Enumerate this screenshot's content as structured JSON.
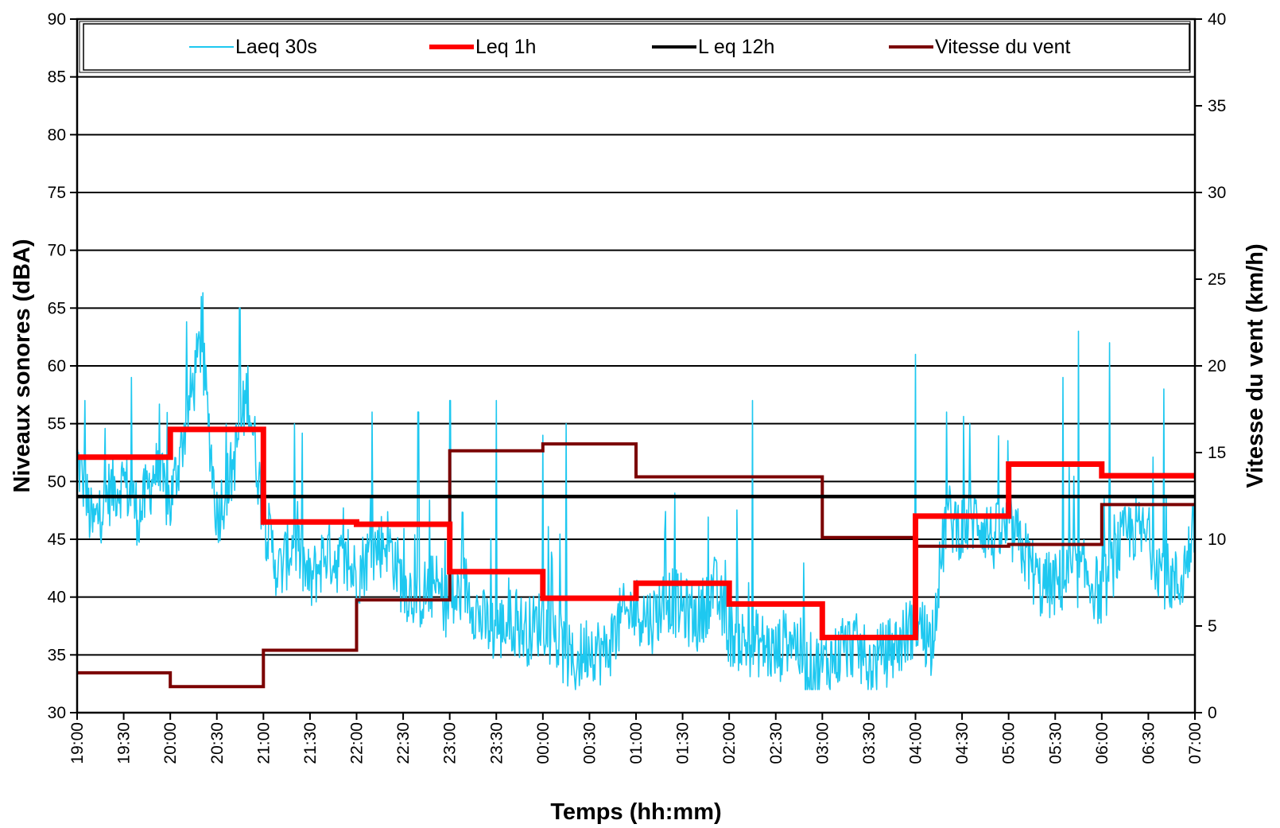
{
  "chart_data": {
    "type": "line",
    "xlabel": "Temps (hh:mm)",
    "ylabel": "Niveaux sonores (dBA)",
    "y2label": "Vitesse du vent (km/h)",
    "ylim": [
      30,
      90
    ],
    "y2lim": [
      0,
      40
    ],
    "yticks": [
      30,
      35,
      40,
      45,
      50,
      55,
      60,
      65,
      70,
      75,
      80,
      85,
      90
    ],
    "y2ticks": [
      0,
      5,
      10,
      15,
      20,
      25,
      30,
      35,
      40
    ],
    "xticks": [
      "19:00",
      "19:30",
      "20:00",
      "20:30",
      "21:00",
      "21:30",
      "22:00",
      "22:30",
      "23:00",
      "23:30",
      "00:00",
      "00:30",
      "01:00",
      "01:30",
      "02:00",
      "02:30",
      "03:00",
      "03:30",
      "04:00",
      "04:30",
      "05:00",
      "05:30",
      "06:00",
      "06:30",
      "07:00"
    ],
    "grid": true,
    "legend_position": "top",
    "series": [
      {
        "name": "Laeq 30s",
        "axis": "left",
        "color": "#1EC8F0",
        "style": "thin-line",
        "x": [
          "19:00",
          "19:10",
          "19:20",
          "19:30",
          "19:40",
          "19:50",
          "20:00",
          "20:10",
          "20:20",
          "20:30",
          "20:40",
          "20:50",
          "21:00",
          "21:10",
          "21:20",
          "21:30",
          "21:40",
          "21:50",
          "22:00",
          "22:10",
          "22:20",
          "22:30",
          "22:40",
          "22:50",
          "23:00",
          "23:10",
          "23:20",
          "23:30",
          "23:40",
          "23:50",
          "00:00",
          "00:10",
          "00:20",
          "00:30",
          "00:40",
          "00:50",
          "01:00",
          "01:10",
          "01:20",
          "01:30",
          "01:40",
          "01:50",
          "02:00",
          "02:10",
          "02:20",
          "02:30",
          "02:40",
          "02:50",
          "03:00",
          "03:10",
          "03:20",
          "03:30",
          "03:40",
          "03:50",
          "04:00",
          "04:10",
          "04:20",
          "04:30",
          "04:40",
          "04:50",
          "05:00",
          "05:10",
          "05:20",
          "05:30",
          "05:40",
          "05:50",
          "06:00",
          "06:10",
          "06:20",
          "06:30",
          "06:40",
          "06:50",
          "07:00"
        ],
        "values": [
          52,
          46,
          49,
          50,
          47,
          51,
          48,
          55,
          62,
          47,
          51,
          58,
          47,
          42,
          45,
          41,
          44,
          43,
          42,
          44,
          45,
          41,
          40,
          41,
          39,
          41,
          38,
          37,
          38,
          37,
          38,
          36,
          34,
          36,
          35,
          38,
          39,
          38,
          40,
          39,
          38,
          41,
          37,
          36,
          36,
          35,
          37,
          34,
          34,
          35,
          36,
          34,
          35,
          36,
          38,
          36,
          47,
          46,
          47,
          45,
          46,
          44,
          41,
          41,
          42,
          42,
          40,
          44,
          46,
          45,
          42,
          41,
          46
        ],
        "peaks": [
          [
            "19:05",
            57
          ],
          [
            "19:35",
            59
          ],
          [
            "20:20",
            66
          ],
          [
            "20:45",
            65
          ],
          [
            "21:20",
            55
          ],
          [
            "22:10",
            56
          ],
          [
            "22:40",
            56
          ],
          [
            "23:00",
            57
          ],
          [
            "23:30",
            57
          ],
          [
            "00:00",
            54
          ],
          [
            "00:15",
            55
          ],
          [
            "01:25",
            49
          ],
          [
            "02:15",
            57
          ],
          [
            "04:00",
            61
          ],
          [
            "04:20",
            56
          ],
          [
            "04:35",
            55
          ],
          [
            "05:35",
            59
          ],
          [
            "05:45",
            63
          ],
          [
            "06:05",
            62
          ],
          [
            "06:40",
            58
          ]
        ]
      },
      {
        "name": "Leq 1h",
        "axis": "left",
        "color": "#FF0000",
        "style": "step-thick",
        "x": [
          "19:00",
          "20:00",
          "21:00",
          "22:00",
          "23:00",
          "00:00",
          "01:00",
          "02:00",
          "03:00",
          "04:00",
          "05:00",
          "06:00",
          "07:00"
        ],
        "values": [
          52.1,
          54.5,
          46.5,
          46.3,
          42.2,
          39.9,
          41.2,
          39.4,
          36.5,
          47.0,
          51.5,
          50.5,
          50.5
        ]
      },
      {
        "name": "L eq 12h",
        "axis": "left",
        "color": "#000000",
        "style": "flat-thick",
        "x": [
          "19:00",
          "07:00"
        ],
        "values": [
          48.7,
          48.7
        ]
      },
      {
        "name": "Vitesse du vent",
        "axis": "right",
        "color": "#7B0000",
        "style": "step-medium",
        "x": [
          "19:00",
          "20:00",
          "21:00",
          "22:00",
          "23:00",
          "00:00",
          "01:00",
          "02:00",
          "03:00",
          "04:00",
          "05:00",
          "06:00",
          "07:00"
        ],
        "values": [
          2.3,
          1.5,
          3.6,
          6.5,
          15.1,
          15.5,
          13.6,
          13.6,
          10.1,
          9.6,
          9.7,
          12.0,
          12.0
        ]
      }
    ]
  }
}
